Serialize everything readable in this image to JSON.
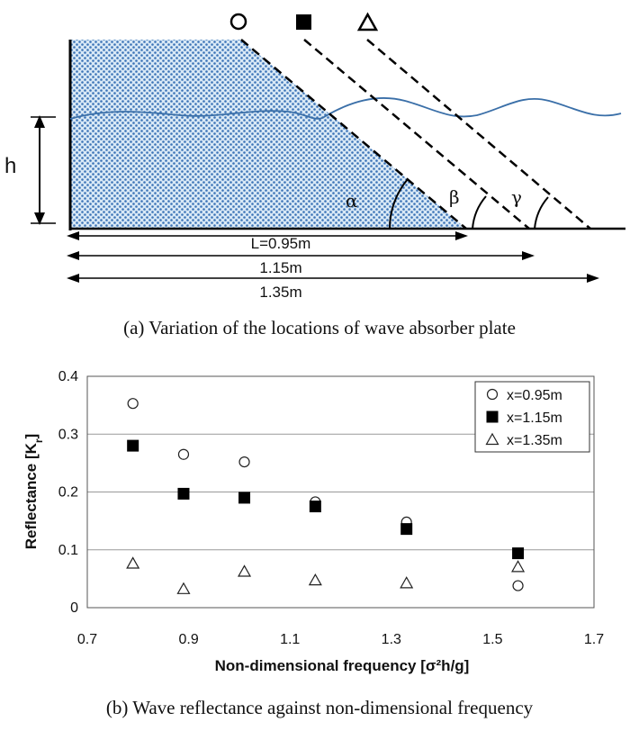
{
  "diagram": {
    "depth_label": "h",
    "angle_labels": [
      "α",
      "β",
      "γ"
    ],
    "distance_labels": [
      "L=0.95m",
      "1.15m",
      "1.35m"
    ],
    "plate_markers": [
      "circle",
      "square",
      "triangle"
    ]
  },
  "captions": {
    "a": "(a) Variation of the locations of wave absorber plate",
    "b": "(b) Wave reflectance against non-dimensional frequency"
  },
  "chart_data": {
    "type": "scatter",
    "xlabel": "Non-dimensional  frequency  [σ²h/g]",
    "ylabel": "Reflectance [K",
    "ylabel_sub": "r",
    "ylabel_end": "]",
    "xlim": [
      0.7,
      1.7
    ],
    "ylim": [
      0,
      0.4
    ],
    "xticks": [
      "0.7",
      "0.9",
      "1.1",
      "1.3",
      "1.5",
      "1.7"
    ],
    "yticks": [
      "0",
      "0.1",
      "0.2",
      "0.3",
      "0.4"
    ],
    "grid": "horizontal",
    "legend_position": "top-right",
    "series": [
      {
        "name": "x=0.95m",
        "marker": "circle",
        "x": [
          0.79,
          0.89,
          1.01,
          1.15,
          1.33,
          1.55
        ],
        "y": [
          0.353,
          0.265,
          0.252,
          0.183,
          0.148,
          0.038
        ]
      },
      {
        "name": "x=1.15m",
        "marker": "square",
        "x": [
          0.79,
          0.89,
          1.01,
          1.15,
          1.33,
          1.55
        ],
        "y": [
          0.28,
          0.197,
          0.19,
          0.175,
          0.136,
          0.094
        ]
      },
      {
        "name": "x=1.35m",
        "marker": "triangle",
        "x": [
          0.79,
          0.89,
          1.01,
          1.15,
          1.33,
          1.55
        ],
        "y": [
          0.077,
          0.033,
          0.063,
          0.048,
          0.043,
          0.071
        ]
      }
    ]
  }
}
